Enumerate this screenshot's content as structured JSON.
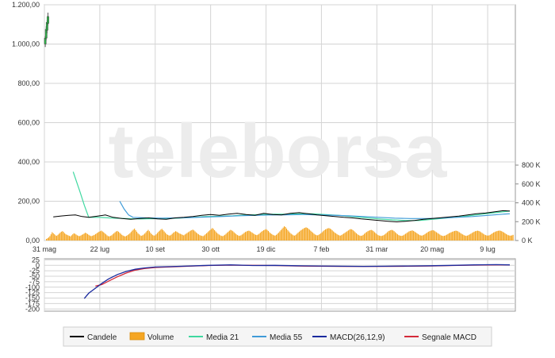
{
  "watermark": {
    "text": "teleborsa",
    "color": "#e9e9e9"
  },
  "colors": {
    "grid": "#d4d4d4",
    "axis": "#8a8a8a",
    "panel_bg": "#ffffff",
    "candle": "#000000",
    "volume": "#f5a623",
    "volume_edge": "#d98c0a",
    "ma21": "#3fd8a0",
    "ma55": "#3f9bd8",
    "macd": "#1a2a9e",
    "signal": "#d42a3a",
    "legend_border": "#cfcfcf",
    "legend_bg": "#f5f5f5"
  },
  "chart_data": [
    {
      "type": "line",
      "panel": "price",
      "yticks": [
        "1.200,00",
        "1.000,00",
        "800,00",
        "600,00",
        "400,00",
        "200,00",
        "0,00"
      ],
      "ytick_values": [
        1200,
        1000,
        800,
        600,
        400,
        200,
        0
      ],
      "ylim": [
        0,
        1200
      ],
      "vol_ticks": [
        "800 K",
        "600 K",
        "400 K",
        "200 K",
        "0 K"
      ],
      "vol_tick_values": [
        800,
        600,
        400,
        200,
        0
      ],
      "vol_ylim": [
        0,
        800
      ],
      "vol_unit": "K",
      "xticks": [
        "31 mag",
        "22 lug",
        "10 set",
        "30 ott",
        "19 dic",
        "7 feb",
        "31 mar",
        "20 mag",
        "9 lug"
      ],
      "x_range": [
        0,
        425
      ],
      "xtick_positions": [
        0,
        50,
        100,
        150,
        200,
        250,
        300,
        350,
        400
      ],
      "early_candles": [
        {
          "x": 0.8,
          "open": 1000,
          "high": 1040,
          "low": 985,
          "close": 1030
        },
        {
          "x": 1.6,
          "open": 1030,
          "high": 1090,
          "low": 1020,
          "close": 1075
        },
        {
          "x": 2.4,
          "open": 1070,
          "high": 1120,
          "low": 1055,
          "close": 1110
        },
        {
          "x": 3.2,
          "open": 1105,
          "high": 1160,
          "low": 1095,
          "close": 1140
        }
      ],
      "price": [
        [
          8,
          120
        ],
        [
          15,
          125
        ],
        [
          22,
          128
        ],
        [
          28,
          130
        ],
        [
          34,
          122
        ],
        [
          40,
          118
        ],
        [
          48,
          124
        ],
        [
          55,
          130
        ],
        [
          62,
          118
        ],
        [
          70,
          112
        ],
        [
          78,
          108
        ],
        [
          86,
          112
        ],
        [
          94,
          115
        ],
        [
          102,
          110
        ],
        [
          110,
          108
        ],
        [
          118,
          115
        ],
        [
          126,
          118
        ],
        [
          134,
          122
        ],
        [
          142,
          128
        ],
        [
          150,
          132
        ],
        [
          158,
          128
        ],
        [
          166,
          134
        ],
        [
          174,
          138
        ],
        [
          182,
          132
        ],
        [
          190,
          128
        ],
        [
          198,
          138
        ],
        [
          206,
          132
        ],
        [
          214,
          130
        ],
        [
          222,
          138
        ],
        [
          230,
          142
        ],
        [
          238,
          136
        ],
        [
          246,
          130
        ],
        [
          254,
          126
        ],
        [
          262,
          122
        ],
        [
          270,
          118
        ],
        [
          278,
          115
        ],
        [
          286,
          110
        ],
        [
          294,
          106
        ],
        [
          302,
          102
        ],
        [
          310,
          98
        ],
        [
          318,
          95
        ],
        [
          326,
          98
        ],
        [
          334,
          102
        ],
        [
          342,
          108
        ],
        [
          350,
          112
        ],
        [
          358,
          116
        ],
        [
          366,
          120
        ],
        [
          374,
          124
        ],
        [
          382,
          130
        ],
        [
          390,
          136
        ],
        [
          398,
          140
        ],
        [
          406,
          146
        ],
        [
          414,
          152
        ],
        [
          420,
          150
        ]
      ],
      "ma21": [
        [
          26,
          350
        ],
        [
          32,
          250
        ],
        [
          36,
          180
        ],
        [
          40,
          118
        ],
        [
          50,
          118
        ],
        [
          62,
          114
        ],
        [
          74,
          112
        ],
        [
          86,
          110
        ],
        [
          98,
          111
        ],
        [
          110,
          112
        ],
        [
          122,
          114
        ],
        [
          134,
          118
        ],
        [
          146,
          122
        ],
        [
          158,
          124
        ],
        [
          170,
          126
        ],
        [
          182,
          130
        ],
        [
          194,
          132
        ],
        [
          206,
          134
        ],
        [
          218,
          134
        ],
        [
          230,
          136
        ],
        [
          242,
          136
        ],
        [
          254,
          132
        ],
        [
          266,
          128
        ],
        [
          278,
          122
        ],
        [
          290,
          116
        ],
        [
          302,
          110
        ],
        [
          314,
          105
        ],
        [
          326,
          102
        ],
        [
          338,
          102
        ],
        [
          350,
          108
        ],
        [
          362,
          114
        ],
        [
          374,
          120
        ],
        [
          386,
          128
        ],
        [
          398,
          136
        ],
        [
          410,
          144
        ],
        [
          420,
          150
        ]
      ],
      "ma55": [
        [
          68,
          200
        ],
        [
          72,
          160
        ],
        [
          76,
          130
        ],
        [
          80,
          118
        ],
        [
          92,
          115
        ],
        [
          106,
          114
        ],
        [
          120,
          115
        ],
        [
          134,
          117
        ],
        [
          148,
          120
        ],
        [
          162,
          123
        ],
        [
          176,
          126
        ],
        [
          190,
          128
        ],
        [
          204,
          130
        ],
        [
          218,
          131
        ],
        [
          232,
          132
        ],
        [
          246,
          131
        ],
        [
          260,
          129
        ],
        [
          274,
          126
        ],
        [
          288,
          122
        ],
        [
          302,
          118
        ],
        [
          316,
          114
        ],
        [
          330,
          112
        ],
        [
          344,
          112
        ],
        [
          358,
          114
        ],
        [
          372,
          118
        ],
        [
          386,
          122
        ],
        [
          400,
          128
        ],
        [
          414,
          134
        ],
        [
          420,
          136
        ]
      ],
      "volume": [
        30,
        45,
        60,
        85,
        120,
        160,
        140,
        120,
        100,
        90,
        110,
        130,
        150,
        170,
        180,
        165,
        140,
        120,
        110,
        100,
        90,
        80,
        100,
        120,
        140,
        130,
        115,
        100,
        90,
        85,
        95,
        110,
        120,
        135,
        150,
        140,
        125,
        110,
        95,
        85,
        90,
        100,
        110,
        125,
        140,
        155,
        170,
        180,
        190,
        175,
        160,
        140,
        120,
        100,
        85,
        80,
        90,
        100,
        120,
        140,
        160,
        175,
        185,
        170,
        150,
        130,
        110,
        95,
        85,
        80,
        90,
        105,
        120,
        140,
        165,
        190,
        210,
        230,
        200,
        170,
        140,
        120,
        100,
        90,
        100,
        115,
        135,
        160,
        185,
        205,
        180,
        150,
        125,
        105,
        95,
        100,
        120,
        145,
        170,
        190,
        210,
        225,
        200,
        175,
        150,
        125,
        110,
        100,
        95,
        110,
        130,
        150,
        165,
        180,
        170,
        155,
        140,
        130,
        120,
        110,
        100,
        115,
        130,
        145,
        160,
        175,
        190,
        200,
        210,
        195,
        175,
        155,
        135,
        120,
        105,
        95,
        90,
        85,
        100,
        120,
        140,
        160,
        180,
        200,
        220,
        240,
        225,
        200,
        175,
        150,
        130,
        115,
        100,
        90,
        85,
        95,
        110,
        130,
        150,
        170,
        190,
        205,
        195,
        180,
        160,
        140,
        120,
        105,
        95,
        90,
        100,
        115,
        130,
        150,
        165,
        175,
        185,
        190,
        180,
        165,
        150,
        135,
        120,
        110,
        105,
        115,
        130,
        150,
        170,
        185,
        200,
        210,
        220,
        205,
        185,
        160,
        140,
        125,
        110,
        100,
        95,
        110,
        130,
        150,
        175,
        200,
        225,
        250,
        275,
        260,
        230,
        200,
        175,
        150,
        130,
        115,
        100,
        95,
        110,
        130,
        150,
        170,
        190,
        205,
        220,
        235,
        245,
        255,
        245,
        230,
        210,
        190,
        170,
        150,
        130,
        115,
        105,
        100,
        110,
        125,
        140,
        160,
        180,
        200,
        215,
        225,
        235,
        240,
        230,
        215,
        195,
        175,
        155,
        140,
        125,
        110,
        100,
        95,
        105,
        120,
        135,
        150,
        165,
        180,
        195,
        210,
        220,
        215,
        200,
        180,
        160,
        140,
        120,
        105,
        95,
        90,
        95,
        110,
        130,
        150,
        165,
        180,
        190,
        200,
        205,
        195,
        180,
        160,
        140,
        120,
        105,
        95,
        90,
        88,
        95,
        105,
        120,
        140,
        160,
        180,
        190,
        200,
        205,
        195,
        180,
        160,
        140,
        120,
        105,
        95,
        90,
        92,
        100,
        115,
        130,
        145,
        160,
        175,
        185,
        190,
        195,
        185,
        170,
        155,
        140,
        125,
        110,
        100,
        95,
        100,
        110,
        125,
        140,
        155,
        170,
        180,
        190,
        195,
        200,
        190,
        175,
        160,
        145,
        130,
        115,
        100,
        92,
        88,
        92,
        100,
        112,
        125,
        140,
        150,
        160,
        170,
        178,
        185,
        190,
        185,
        175,
        160,
        145,
        130,
        118,
        105,
        95,
        90,
        95,
        105,
        118,
        130,
        145,
        158,
        170,
        180,
        185,
        190,
        185,
        175,
        160,
        145,
        130,
        115,
        105,
        98,
        95,
        100,
        110,
        125,
        140,
        155,
        165,
        175,
        182,
        188,
        192,
        188,
        180,
        168,
        155,
        140,
        125,
        112,
        102,
        96,
        94,
        100,
        110
      ]
    },
    {
      "type": "line",
      "panel": "macd",
      "yticks": [
        "25",
        "0",
        "-25",
        "-50",
        "-75",
        "-100",
        "-125",
        "-150",
        "-175",
        "-200"
      ],
      "ytick_values": [
        25,
        0,
        -25,
        -50,
        -75,
        -100,
        -125,
        -150,
        -175,
        -200
      ],
      "ylim": [
        -210,
        30
      ],
      "x_range": [
        0,
        425
      ],
      "macd": [
        [
          36,
          -152
        ],
        [
          40,
          -128
        ],
        [
          46,
          -105
        ],
        [
          52,
          -82
        ],
        [
          58,
          -62
        ],
        [
          66,
          -42
        ],
        [
          74,
          -28
        ],
        [
          82,
          -18
        ],
        [
          90,
          -12
        ],
        [
          100,
          -8
        ],
        [
          114,
          -6
        ],
        [
          130,
          -3
        ],
        [
          148,
          0
        ],
        [
          168,
          2
        ],
        [
          188,
          -1
        ],
        [
          208,
          0
        ],
        [
          228,
          -2
        ],
        [
          248,
          -3
        ],
        [
          268,
          -4
        ],
        [
          288,
          -5
        ],
        [
          308,
          -4
        ],
        [
          328,
          -3
        ],
        [
          348,
          -2
        ],
        [
          368,
          0
        ],
        [
          388,
          2
        ],
        [
          408,
          3
        ],
        [
          420,
          2
        ]
      ],
      "signal": [
        [
          46,
          -95
        ],
        [
          52,
          -88
        ],
        [
          58,
          -72
        ],
        [
          66,
          -52
        ],
        [
          74,
          -35
        ],
        [
          82,
          -22
        ],
        [
          90,
          -15
        ],
        [
          100,
          -10
        ],
        [
          114,
          -7
        ],
        [
          130,
          -4
        ],
        [
          148,
          -1
        ],
        [
          168,
          1
        ],
        [
          188,
          0
        ],
        [
          208,
          -1
        ],
        [
          228,
          -3
        ],
        [
          248,
          -4
        ],
        [
          268,
          -5
        ],
        [
          288,
          -5
        ],
        [
          308,
          -5
        ],
        [
          328,
          -4
        ],
        [
          348,
          -3
        ],
        [
          368,
          -1
        ],
        [
          388,
          1
        ],
        [
          408,
          2
        ],
        [
          420,
          2
        ]
      ]
    }
  ],
  "legend": [
    {
      "label": "Candele",
      "color": "#000000",
      "kind": "line"
    },
    {
      "label": "Volume",
      "color": "#f5a623",
      "kind": "box"
    },
    {
      "label": "Media 21",
      "color": "#3fd8a0",
      "kind": "line"
    },
    {
      "label": "Media 55",
      "color": "#3f9bd8",
      "kind": "line"
    },
    {
      "label": "MACD(26,12,9)",
      "color": "#1a2a9e",
      "kind": "line"
    },
    {
      "label": "Segnale MACD",
      "color": "#d42a3a",
      "kind": "line"
    }
  ]
}
